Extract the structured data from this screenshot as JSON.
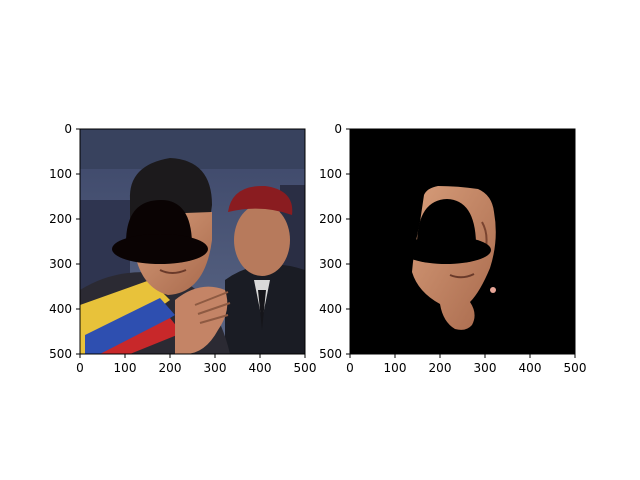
{
  "panels": [
    {
      "name": "photo",
      "xticks": [
        "0",
        "100",
        "200",
        "300",
        "400",
        "500"
      ],
      "yticks": [
        "0",
        "100",
        "200",
        "300",
        "400",
        "500"
      ],
      "xlim": [
        0,
        500
      ],
      "ylim": [
        500,
        0
      ],
      "content": "photograph of a man in a crowd with a black bowler-hat mask over his eyes"
    },
    {
      "name": "mask",
      "xticks": [
        "0",
        "100",
        "200",
        "300",
        "400",
        "500"
      ],
      "yticks": [
        "0",
        "100",
        "200",
        "300",
        "400",
        "500"
      ],
      "xlim": [
        0,
        500
      ],
      "ylim": [
        500,
        0
      ],
      "content": "segmented face skin on black background with hat-shaped cutout"
    }
  ],
  "colors": {
    "background": "#ffffff",
    "mask_background": "#000000",
    "hat": "#0a0303",
    "skin": "#c88a6a",
    "beret": "#8a1c20",
    "sky": "#4a5678"
  }
}
